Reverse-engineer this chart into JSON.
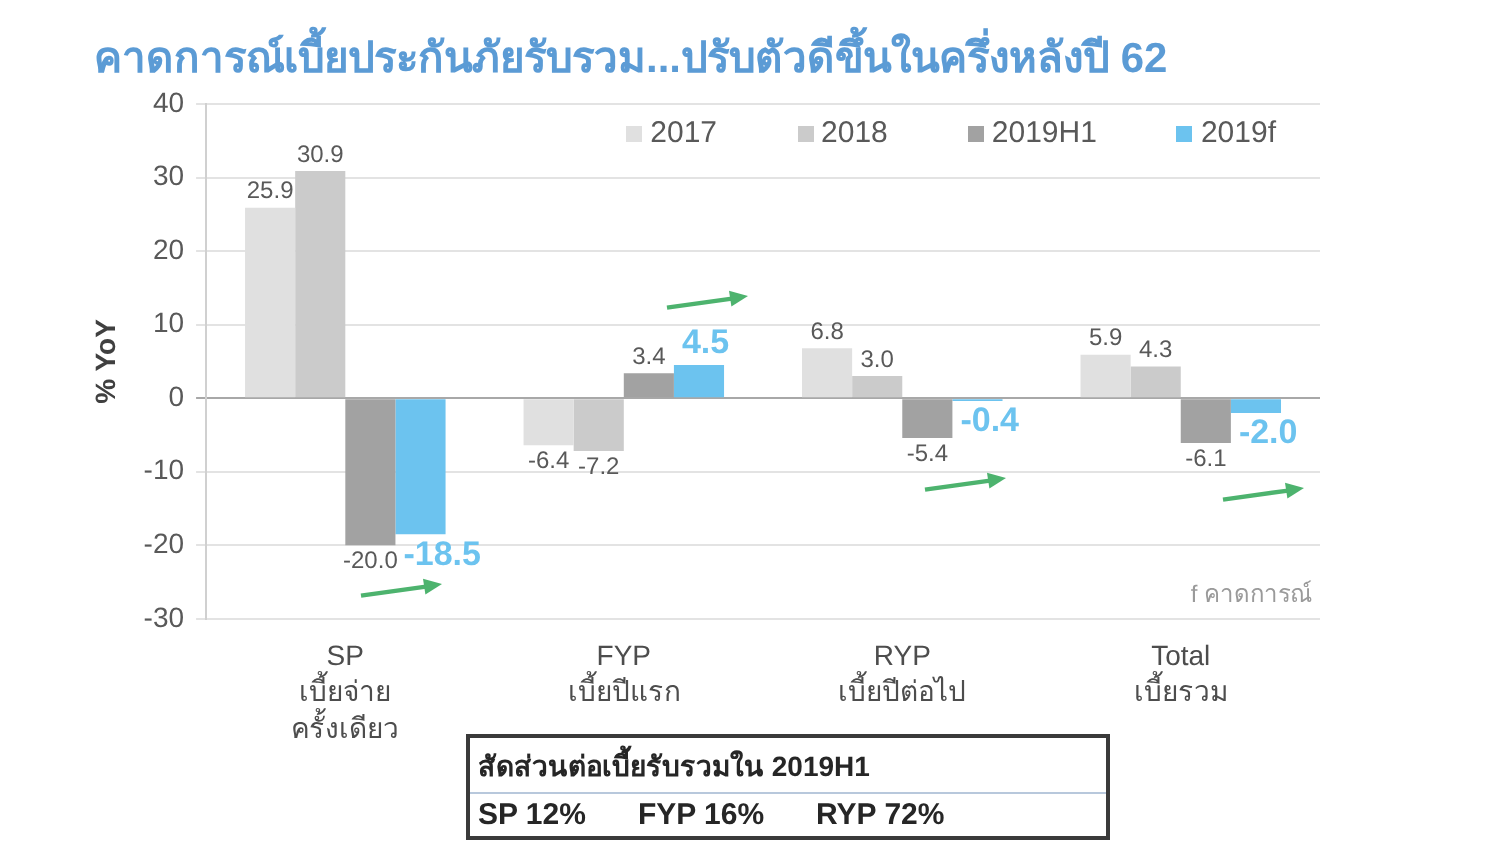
{
  "chart_data": [
    {
      "type": "bar",
      "title": "คาดการณ์เบี้ยประกันภัยรับรวม...ปรับตัวดีขึ้นในครึ่งหลังปี 62",
      "ylabel": "% YoY",
      "categories": [
        "SP\nเบี้ยจ่าย\nครั้งเดียว",
        "FYP\nเบี้ยปีแรก",
        "RYP\nเบี้ยปีต่อไป",
        "Total\nเบี้ยรวม"
      ],
      "series": [
        {
          "name": "2017",
          "color": "#e0e0e0",
          "values": [
            25.9,
            -6.4,
            6.8,
            5.9
          ],
          "value_labels": [
            "25.9",
            "-6.4",
            "6.8",
            "5.9"
          ]
        },
        {
          "name": "2018",
          "color": "#cbcbcb",
          "values": [
            30.9,
            -7.2,
            3.0,
            4.3
          ],
          "value_labels": [
            "30.9",
            "-7.2",
            "3.0",
            "4.3"
          ]
        },
        {
          "name": "2019H1",
          "color": "#a2a2a2",
          "values": [
            -20.0,
            3.4,
            -5.4,
            -6.1
          ],
          "value_labels": [
            "-20.0",
            "3.4",
            "-5.4",
            "-6.1"
          ]
        },
        {
          "name": "2019f",
          "color": "#6cc3ef",
          "values": [
            -18.5,
            4.5,
            -0.4,
            -2.0
          ],
          "value_labels": [
            "-18.5",
            "4.5",
            "-0.4",
            "-2.0"
          ]
        }
      ],
      "ylim": [
        -30,
        40
      ],
      "yticks": [
        -30,
        -20,
        -10,
        0,
        10,
        20,
        30,
        40
      ],
      "grid": "y",
      "legend": "top right",
      "annotations": [
        "f คาดการณ์"
      ]
    },
    {
      "type": "other",
      "title": "สัดส่วนต่อเบี้ยรับรวมใน 2019H1",
      "annotations": [
        "SP 12%",
        "FYP 16%",
        "RYP 72%"
      ]
    }
  ]
}
